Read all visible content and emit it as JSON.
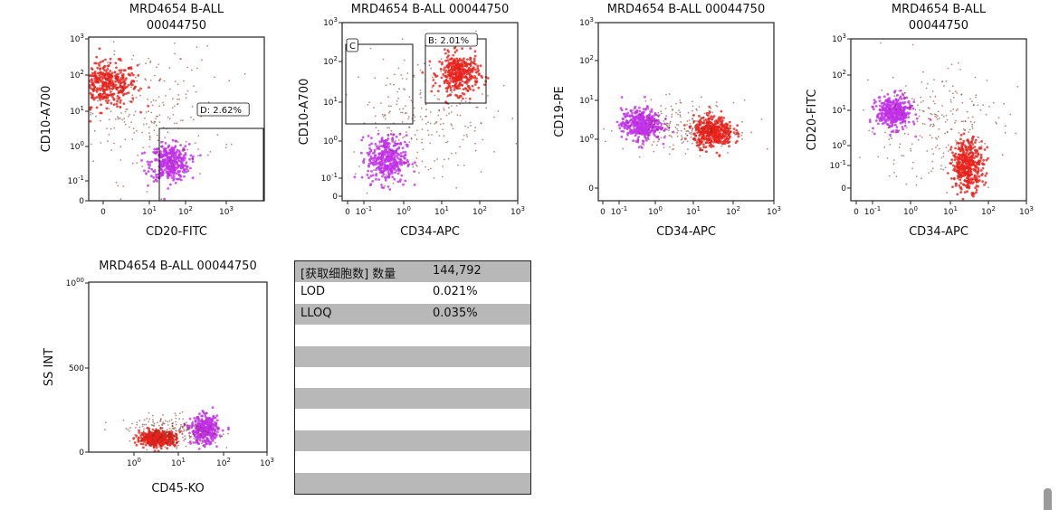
{
  "chart_data": [
    {
      "type": "scatter",
      "title": [
        "MRD4654 B-ALL",
        "00044750"
      ],
      "xlabel": "CD20-FITC",
      "ylabel": "CD10-A700",
      "x_ticks": [
        "0",
        "10¹",
        "10²",
        "10³"
      ],
      "y_ticks": [
        "0",
        "10⁻¹",
        "10⁰",
        "10¹",
        "10²",
        "10³"
      ],
      "gates": [
        {
          "label": "D: 2.62%"
        }
      ],
      "populations": [
        {
          "color": "#e8221b",
          "center_log": [
            -0.6,
            1.7
          ],
          "spread_log": [
            0.35,
            0.3
          ],
          "n": 400
        },
        {
          "color": "#c031e8",
          "center_log": [
            0.85,
            -0.45
          ],
          "spread_log": [
            0.22,
            0.25
          ],
          "n": 380
        },
        {
          "color": "#7a2a1f",
          "center_log": [
            0.2,
            0.9
          ],
          "spread_log": [
            0.9,
            0.9
          ],
          "n": 260
        }
      ]
    },
    {
      "type": "scatter",
      "title": [
        "MRD4654 B-ALL 00044750"
      ],
      "xlabel": "CD34-APC",
      "ylabel": "CD10-A700",
      "x_ticks": [
        "0",
        "10⁻¹",
        "10⁰",
        "10¹",
        "10²",
        "10³"
      ],
      "y_ticks": [
        "0",
        "10⁻¹",
        "10⁰",
        "10¹",
        "10²",
        "10³"
      ],
      "gates": [
        {
          "label": "C"
        },
        {
          "label": "B: 2.01%"
        }
      ],
      "populations": [
        {
          "color": "#e8221b",
          "center_log": [
            1.5,
            1.7
          ],
          "spread_log": [
            0.25,
            0.25
          ],
          "n": 380
        },
        {
          "color": "#c031e8",
          "center_log": [
            -0.35,
            -0.45
          ],
          "spread_log": [
            0.25,
            0.3
          ],
          "n": 380
        },
        {
          "color": "#7a2a1f",
          "center_log": [
            0.5,
            0.6
          ],
          "spread_log": [
            0.9,
            0.8
          ],
          "n": 240
        }
      ]
    },
    {
      "type": "scatter",
      "title": [
        "MRD4654 B-ALL 00044750"
      ],
      "xlabel": "CD34-APC",
      "ylabel": "CD19-PE",
      "x_ticks": [
        "0",
        "10⁻¹",
        "10⁰",
        "10¹",
        "10²",
        "10³"
      ],
      "y_ticks": [
        "0",
        "10⁰",
        "10¹",
        "10²",
        "10³"
      ],
      "gates": [],
      "populations": [
        {
          "color": "#c031e8",
          "center_log": [
            -0.4,
            1.0
          ],
          "spread_log": [
            0.25,
            0.15
          ],
          "n": 420
        },
        {
          "color": "#e8221b",
          "center_log": [
            1.45,
            0.85
          ],
          "spread_log": [
            0.25,
            0.15
          ],
          "n": 420
        },
        {
          "color": "#7a2a1f",
          "center_log": [
            0.6,
            0.95
          ],
          "spread_log": [
            0.7,
            0.25
          ],
          "n": 220
        }
      ]
    },
    {
      "type": "scatter",
      "title": [
        "MRD4654 B-ALL",
        "00044750"
      ],
      "xlabel": "CD34-APC",
      "ylabel": "CD20-FITC",
      "x_ticks": [
        "0",
        "10⁻¹",
        "10⁰",
        "10¹",
        "10²",
        "10³"
      ],
      "y_ticks": [
        "0",
        "10⁻¹",
        "10⁰",
        "10¹",
        "10²",
        "10³"
      ],
      "gates": [],
      "populations": [
        {
          "color": "#c031e8",
          "center_log": [
            -0.4,
            0.95
          ],
          "spread_log": [
            0.22,
            0.22
          ],
          "n": 400
        },
        {
          "color": "#e8221b",
          "center_log": [
            1.5,
            -0.5
          ],
          "spread_log": [
            0.2,
            0.35
          ],
          "n": 400
        },
        {
          "color": "#7a2a1f",
          "center_log": [
            0.6,
            0.6
          ],
          "spread_log": [
            0.9,
            0.8
          ],
          "n": 240
        }
      ]
    },
    {
      "type": "scatter",
      "title": [
        "MRD4654 B-ALL 00044750"
      ],
      "xlabel": "CD45-KO",
      "ylabel": "SS INT",
      "x_ticks": [
        "10⁰",
        "10¹",
        "10²",
        "10³"
      ],
      "y_ticks": [
        "0",
        "500",
        "1000"
      ],
      "y_scale": "linear",
      "ylim": [
        0,
        1000
      ],
      "gates": [],
      "populations": [
        {
          "color": "#e8221b",
          "center_log": [
            0.55,
            80
          ],
          "spread_log": [
            0.2,
            22
          ],
          "n": 420
        },
        {
          "color": "#c031e8",
          "center_log": [
            1.6,
            130
          ],
          "spread_log": [
            0.15,
            40
          ],
          "n": 380
        },
        {
          "color": "#7a2a1f",
          "center_log": [
            0.9,
            120
          ],
          "spread_log": [
            0.5,
            45
          ],
          "n": 260
        }
      ]
    }
  ],
  "stats_table": {
    "rows": [
      {
        "label": "[获取细胞数] 数量",
        "value": "144,792"
      },
      {
        "label": "LOD",
        "value": "0.021%"
      },
      {
        "label": "LLOQ",
        "value": "0.035%"
      },
      {
        "label": "",
        "value": ""
      },
      {
        "label": "",
        "value": ""
      },
      {
        "label": "",
        "value": ""
      },
      {
        "label": "",
        "value": ""
      },
      {
        "label": "",
        "value": ""
      },
      {
        "label": "",
        "value": ""
      },
      {
        "label": "",
        "value": ""
      },
      {
        "label": "",
        "value": ""
      }
    ]
  }
}
